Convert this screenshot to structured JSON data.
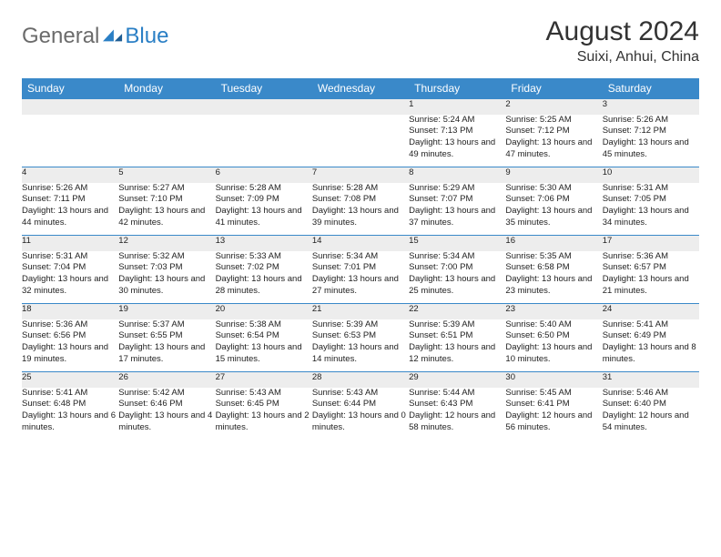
{
  "logo": {
    "text1": "General",
    "text2": "Blue"
  },
  "title": "August 2024",
  "location": "Suixi, Anhui, China",
  "colors": {
    "header_bg": "#3a89c9",
    "header_text": "#ffffff",
    "daynum_bg": "#ededed",
    "border": "#3a89c9",
    "logo_gray": "#6b6b6b",
    "logo_blue": "#2a7fc5"
  },
  "weekdays": [
    "Sunday",
    "Monday",
    "Tuesday",
    "Wednesday",
    "Thursday",
    "Friday",
    "Saturday"
  ],
  "weeks": [
    {
      "nums": [
        "",
        "",
        "",
        "",
        "1",
        "2",
        "3"
      ],
      "cells": [
        null,
        null,
        null,
        null,
        {
          "sunrise": "5:24 AM",
          "sunset": "7:13 PM",
          "daylight": "13 hours and 49 minutes."
        },
        {
          "sunrise": "5:25 AM",
          "sunset": "7:12 PM",
          "daylight": "13 hours and 47 minutes."
        },
        {
          "sunrise": "5:26 AM",
          "sunset": "7:12 PM",
          "daylight": "13 hours and 45 minutes."
        }
      ]
    },
    {
      "nums": [
        "4",
        "5",
        "6",
        "7",
        "8",
        "9",
        "10"
      ],
      "cells": [
        {
          "sunrise": "5:26 AM",
          "sunset": "7:11 PM",
          "daylight": "13 hours and 44 minutes."
        },
        {
          "sunrise": "5:27 AM",
          "sunset": "7:10 PM",
          "daylight": "13 hours and 42 minutes."
        },
        {
          "sunrise": "5:28 AM",
          "sunset": "7:09 PM",
          "daylight": "13 hours and 41 minutes."
        },
        {
          "sunrise": "5:28 AM",
          "sunset": "7:08 PM",
          "daylight": "13 hours and 39 minutes."
        },
        {
          "sunrise": "5:29 AM",
          "sunset": "7:07 PM",
          "daylight": "13 hours and 37 minutes."
        },
        {
          "sunrise": "5:30 AM",
          "sunset": "7:06 PM",
          "daylight": "13 hours and 35 minutes."
        },
        {
          "sunrise": "5:31 AM",
          "sunset": "7:05 PM",
          "daylight": "13 hours and 34 minutes."
        }
      ]
    },
    {
      "nums": [
        "11",
        "12",
        "13",
        "14",
        "15",
        "16",
        "17"
      ],
      "cells": [
        {
          "sunrise": "5:31 AM",
          "sunset": "7:04 PM",
          "daylight": "13 hours and 32 minutes."
        },
        {
          "sunrise": "5:32 AM",
          "sunset": "7:03 PM",
          "daylight": "13 hours and 30 minutes."
        },
        {
          "sunrise": "5:33 AM",
          "sunset": "7:02 PM",
          "daylight": "13 hours and 28 minutes."
        },
        {
          "sunrise": "5:34 AM",
          "sunset": "7:01 PM",
          "daylight": "13 hours and 27 minutes."
        },
        {
          "sunrise": "5:34 AM",
          "sunset": "7:00 PM",
          "daylight": "13 hours and 25 minutes."
        },
        {
          "sunrise": "5:35 AM",
          "sunset": "6:58 PM",
          "daylight": "13 hours and 23 minutes."
        },
        {
          "sunrise": "5:36 AM",
          "sunset": "6:57 PM",
          "daylight": "13 hours and 21 minutes."
        }
      ]
    },
    {
      "nums": [
        "18",
        "19",
        "20",
        "21",
        "22",
        "23",
        "24"
      ],
      "cells": [
        {
          "sunrise": "5:36 AM",
          "sunset": "6:56 PM",
          "daylight": "13 hours and 19 minutes."
        },
        {
          "sunrise": "5:37 AM",
          "sunset": "6:55 PM",
          "daylight": "13 hours and 17 minutes."
        },
        {
          "sunrise": "5:38 AM",
          "sunset": "6:54 PM",
          "daylight": "13 hours and 15 minutes."
        },
        {
          "sunrise": "5:39 AM",
          "sunset": "6:53 PM",
          "daylight": "13 hours and 14 minutes."
        },
        {
          "sunrise": "5:39 AM",
          "sunset": "6:51 PM",
          "daylight": "13 hours and 12 minutes."
        },
        {
          "sunrise": "5:40 AM",
          "sunset": "6:50 PM",
          "daylight": "13 hours and 10 minutes."
        },
        {
          "sunrise": "5:41 AM",
          "sunset": "6:49 PM",
          "daylight": "13 hours and 8 minutes."
        }
      ]
    },
    {
      "nums": [
        "25",
        "26",
        "27",
        "28",
        "29",
        "30",
        "31"
      ],
      "cells": [
        {
          "sunrise": "5:41 AM",
          "sunset": "6:48 PM",
          "daylight": "13 hours and 6 minutes."
        },
        {
          "sunrise": "5:42 AM",
          "sunset": "6:46 PM",
          "daylight": "13 hours and 4 minutes."
        },
        {
          "sunrise": "5:43 AM",
          "sunset": "6:45 PM",
          "daylight": "13 hours and 2 minutes."
        },
        {
          "sunrise": "5:43 AM",
          "sunset": "6:44 PM",
          "daylight": "13 hours and 0 minutes."
        },
        {
          "sunrise": "5:44 AM",
          "sunset": "6:43 PM",
          "daylight": "12 hours and 58 minutes."
        },
        {
          "sunrise": "5:45 AM",
          "sunset": "6:41 PM",
          "daylight": "12 hours and 56 minutes."
        },
        {
          "sunrise": "5:46 AM",
          "sunset": "6:40 PM",
          "daylight": "12 hours and 54 minutes."
        }
      ]
    }
  ]
}
